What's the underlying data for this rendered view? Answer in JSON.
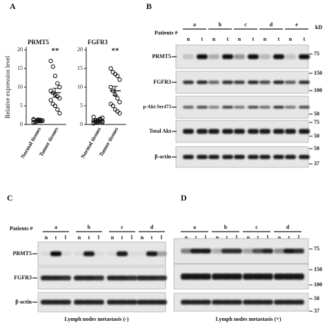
{
  "chart_data": [
    {
      "type": "scatter",
      "title": "PRMT5",
      "y_label": "Relative expression level",
      "annotation": "**",
      "categories": [
        "Normal tissues",
        "Tumor tissues"
      ],
      "values": [
        [
          0.6,
          0.8,
          0.9,
          1.0,
          1.1,
          1.2,
          0.7,
          1.3,
          0.9,
          1.0,
          1.4,
          0.8,
          1.1,
          1.2,
          1.0
        ],
        [
          17,
          15.5,
          13,
          11,
          10,
          9,
          8.5,
          8,
          7.5,
          7,
          6.5,
          5.5,
          5,
          4,
          3
        ]
      ],
      "mean": [
        1.0,
        8.5
      ],
      "error": [
        0.15,
        1.2
      ],
      "ylim": [
        0,
        20
      ],
      "yticks": [
        0,
        5,
        10,
        15,
        20
      ]
    },
    {
      "type": "scatter",
      "title": "FGFR3",
      "annotation": "**",
      "categories": [
        "Normal tissues",
        "Tumor tissues"
      ],
      "values": [
        [
          0.3,
          0.5,
          0.6,
          0.8,
          0.9,
          1.0,
          1.1,
          1.2,
          1.5,
          1.8,
          2.0,
          0.7,
          0.9,
          1.3,
          0.6
        ],
        [
          15,
          14,
          13.5,
          13,
          12,
          10,
          9,
          8,
          7,
          6,
          5.5,
          5,
          4,
          3.5,
          3
        ]
      ],
      "mean": [
        1.0,
        9.0
      ],
      "error": [
        0.15,
        1.2
      ],
      "ylim": [
        0,
        20
      ],
      "yticks": [
        0,
        5,
        10,
        15,
        20
      ]
    }
  ],
  "panel_a": {
    "label": "A"
  },
  "blots": [
    {
      "label": "B",
      "patients_label": "Patients #",
      "patients": [
        "a",
        "b",
        "c",
        "d",
        "e"
      ],
      "lanes": [
        "n",
        "t"
      ],
      "kd_label": "kD",
      "proteins": [
        "PRMT5",
        "FGFR3",
        "p-Akt-Ser473",
        "Total Akt",
        "β-actin"
      ],
      "markers": [
        75,
        150,
        100,
        50,
        75,
        50,
        50,
        37
      ]
    },
    {
      "label": "C",
      "patients_label": "Patients #",
      "patients": [
        "a",
        "b",
        "c",
        "d"
      ],
      "lanes": [
        "n",
        "t",
        "l"
      ],
      "proteins": [
        "PRMT5",
        "FGFR3",
        "β-actin"
      ],
      "caption": "Lymph nodes metastasis (-)"
    },
    {
      "label": "D",
      "patients": [
        "a",
        "b",
        "c",
        "d"
      ],
      "lanes": [
        "n",
        "t",
        "l"
      ],
      "markers": [
        75,
        150,
        100,
        50,
        37
      ],
      "caption": "Lymph nodes metastasis (+)"
    }
  ]
}
